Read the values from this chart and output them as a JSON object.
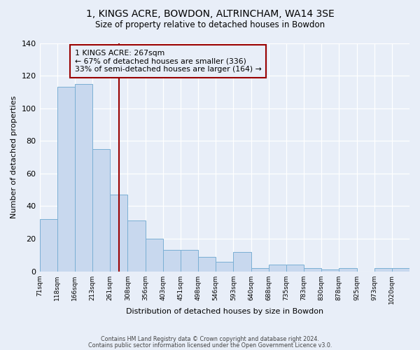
{
  "title": "1, KINGS ACRE, BOWDON, ALTRINCHAM, WA14 3SE",
  "subtitle": "Size of property relative to detached houses in Bowdon",
  "xlabel": "Distribution of detached houses by size in Bowdon",
  "ylabel": "Number of detached properties",
  "categories": [
    "71sqm",
    "118sqm",
    "166sqm",
    "213sqm",
    "261sqm",
    "308sqm",
    "356sqm",
    "403sqm",
    "451sqm",
    "498sqm",
    "546sqm",
    "593sqm",
    "640sqm",
    "688sqm",
    "735sqm",
    "783sqm",
    "830sqm",
    "878sqm",
    "925sqm",
    "973sqm",
    "1020sqm"
  ],
  "values": [
    32,
    113,
    115,
    75,
    47,
    31,
    20,
    13,
    13,
    9,
    6,
    12,
    2,
    4,
    4,
    2,
    1,
    2,
    0,
    2,
    2
  ],
  "bar_color": "#c8d8ee",
  "bar_edge_color": "#7aafd4",
  "background_color": "#e8eef8",
  "ylim": [
    0,
    140
  ],
  "yticks": [
    0,
    20,
    40,
    60,
    80,
    100,
    120,
    140
  ],
  "vline_x_index": 4.5,
  "annotation_line1": "1 KINGS ACRE: 267sqm",
  "annotation_line2": "← 67% of detached houses are smaller (336)",
  "annotation_line3": "33% of semi-detached houses are larger (164) →",
  "vline_color": "#990000",
  "box_edge_color": "#990000",
  "footer1": "Contains HM Land Registry data © Crown copyright and database right 2024.",
  "footer2": "Contains public sector information licensed under the Open Government Licence v3.0."
}
